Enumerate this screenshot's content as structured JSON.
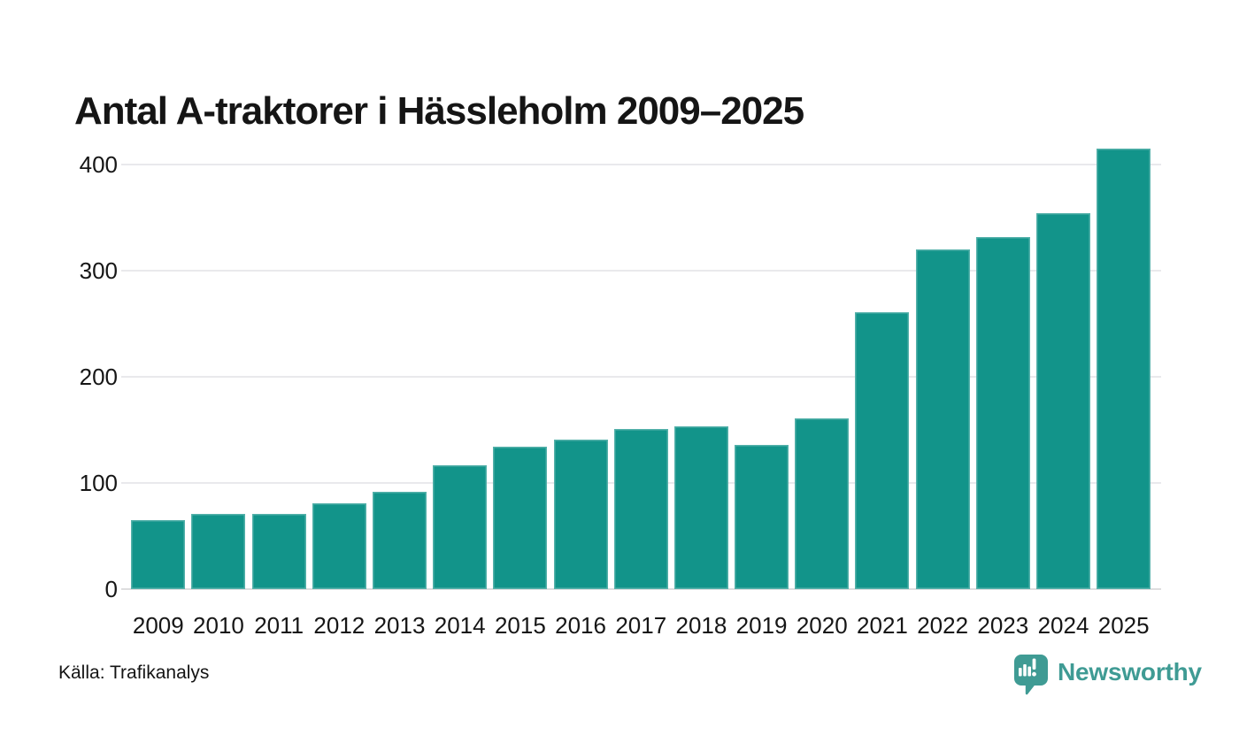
{
  "header": {
    "title": "Antal A-traktorer i Hässleholm 2009–2025"
  },
  "chart_data": {
    "type": "bar",
    "title": "Antal A-traktorer i Hässleholm 2009–2025",
    "categories": [
      "2009",
      "2010",
      "2011",
      "2012",
      "2013",
      "2014",
      "2015",
      "2016",
      "2017",
      "2018",
      "2019",
      "2020",
      "2021",
      "2022",
      "2023",
      "2024",
      "2025"
    ],
    "values": [
      65,
      71,
      71,
      81,
      92,
      117,
      134,
      141,
      151,
      153,
      136,
      161,
      261,
      320,
      332,
      354,
      415
    ],
    "xlabel": "",
    "ylabel": "",
    "ylim": [
      0,
      420
    ],
    "yticks": [
      0,
      100,
      200,
      300,
      400
    ],
    "grid": true,
    "legend": false,
    "bar_color": "#12948a",
    "source": "Källa: Trafikanalys"
  },
  "footer": {
    "source": "Källa: Trafikanalys",
    "brand": {
      "name": "Newsworthy",
      "color": "#3f9b94",
      "icon": "newsworthy-pin-barchart-icon"
    }
  },
  "colors": {
    "bar": "#12948a",
    "gridline": "#e9e9ec",
    "axis_line": "#dededf",
    "text": "#161616",
    "brand": "#3f9b94",
    "background": "#ffffff"
  }
}
